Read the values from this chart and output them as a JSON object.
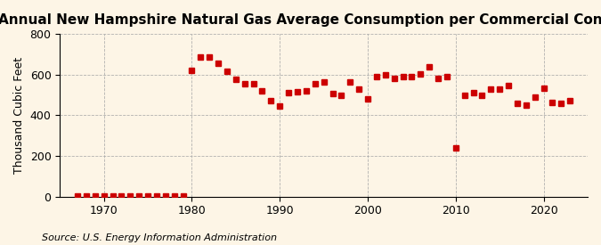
{
  "title": "Annual New Hampshire Natural Gas Average Consumption per Commercial Consumer",
  "ylabel": "Thousand Cubic Feet",
  "source": "Source: U.S. Energy Information Administration",
  "background_color": "#fdf5e6",
  "marker_color": "#cc0000",
  "years": [
    1967,
    1968,
    1969,
    1970,
    1971,
    1972,
    1973,
    1974,
    1975,
    1976,
    1977,
    1978,
    1979,
    1980,
    1981,
    1982,
    1983,
    1984,
    1985,
    1986,
    1987,
    1988,
    1989,
    1990,
    1991,
    1992,
    1993,
    1994,
    1995,
    1996,
    1997,
    1998,
    1999,
    2000,
    2001,
    2002,
    2003,
    2004,
    2005,
    2006,
    2007,
    2008,
    2009,
    2010,
    2011,
    2012,
    2013,
    2014,
    2015,
    2016,
    2017,
    2018,
    2019,
    2020,
    2021,
    2022,
    2023
  ],
  "values": [
    2,
    2,
    2,
    2,
    2,
    2,
    2,
    2,
    2,
    2,
    2,
    2,
    2,
    620,
    685,
    685,
    655,
    615,
    575,
    555,
    555,
    520,
    470,
    445,
    510,
    515,
    520,
    555,
    565,
    505,
    500,
    565,
    530,
    480,
    590,
    600,
    580,
    590,
    590,
    605,
    640,
    580,
    590,
    240,
    500,
    510,
    500,
    530,
    530,
    545,
    460,
    450,
    490,
    535,
    465,
    460,
    470
  ],
  "ylim": [
    0,
    800
  ],
  "yticks": [
    0,
    200,
    400,
    600,
    800
  ],
  "xlim": [
    1965,
    2025
  ],
  "xticks": [
    1970,
    1980,
    1990,
    2000,
    2010,
    2020
  ],
  "grid_color": "#aaaaaa",
  "title_fontsize": 11,
  "label_fontsize": 9,
  "source_fontsize": 8
}
